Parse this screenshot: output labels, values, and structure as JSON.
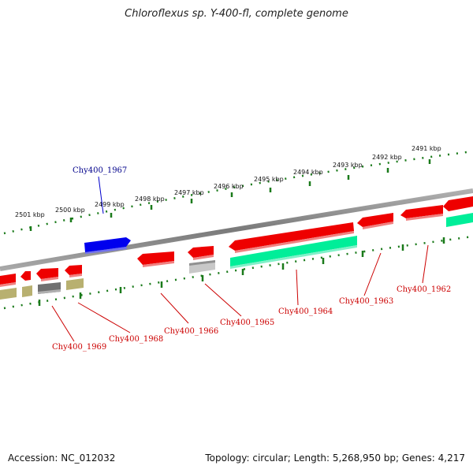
{
  "title": "Chloroflexus sp. Y-400-fl, complete genome",
  "footer": {
    "accession": "Accession: NC_012032",
    "summary": "Topology: circular; Length: 5,268,950 bp; Genes: 4,217"
  },
  "kbp_ticks": [
    "2501 kbp",
    "2500 kbp",
    "2499 kbp",
    "2498 kbp",
    "2497 kbp",
    "2496 kbp",
    "2495 kbp",
    "2494 kbp",
    "2493 kbp",
    "2492 kbp",
    "2491 kbp"
  ],
  "gene_labels": [
    {
      "id": "chy400-1967",
      "text": "Chy400_1967",
      "color": "#00008b"
    },
    {
      "id": "chy400-1969",
      "text": "Chy400_1969",
      "color": "#cc0000"
    },
    {
      "id": "chy400-1968",
      "text": "Chy400_1968",
      "color": "#cc0000"
    },
    {
      "id": "chy400-1966",
      "text": "Chy400_1966",
      "color": "#cc0000"
    },
    {
      "id": "chy400-1965",
      "text": "Chy400_1965",
      "color": "#cc0000"
    },
    {
      "id": "chy400-1964",
      "text": "Chy400_1964",
      "color": "#cc0000"
    },
    {
      "id": "chy400-1963",
      "text": "Chy400_1963",
      "color": "#cc0000"
    },
    {
      "id": "chy400-1962",
      "text": "Chy400_1962",
      "color": "#cc0000"
    }
  ],
  "colors": {
    "backbone": "#8a8a8a",
    "forward_gene": "#0000ee",
    "reverse_gene": "#ee0000",
    "cds_green": "#00ee99",
    "tick_green": "#1a7a1a",
    "khaki": "#b8b070",
    "dark_gray": "#707070",
    "light_gray": "#c8c8c8"
  }
}
